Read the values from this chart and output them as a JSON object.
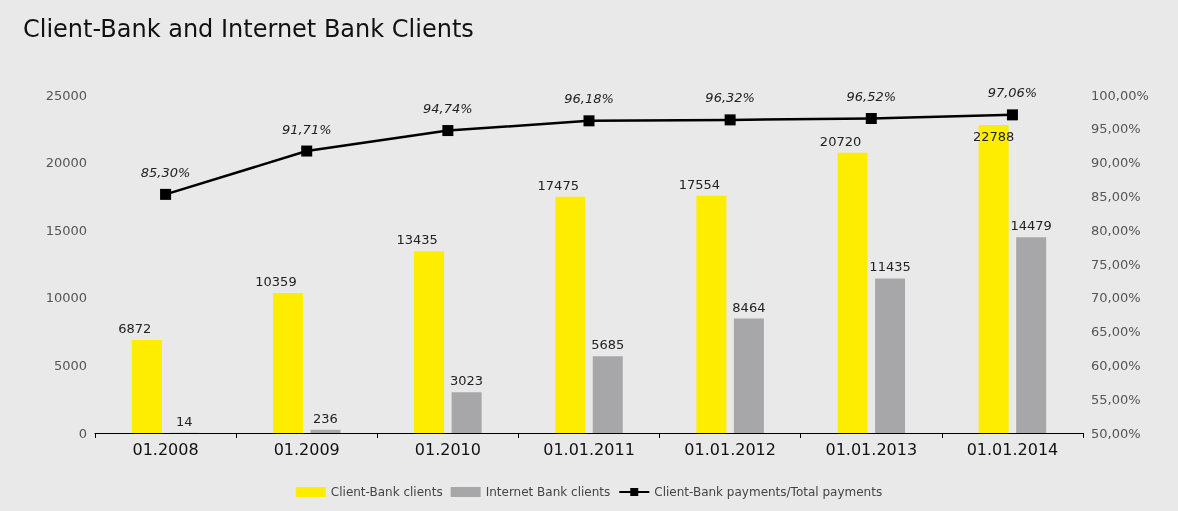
{
  "chart_data": {
    "type": "bar",
    "title": "Client-Bank and Internet Bank Clients",
    "categories": [
      "01.2008",
      "01.2009",
      "01.2010",
      "01.01.2011",
      "01.01.2012",
      "01.01.2013",
      "01.01.2014"
    ],
    "series": [
      {
        "name": "Client-Bank clients",
        "color": "#ffed00",
        "values": [
          6872,
          10359,
          13435,
          17475,
          17554,
          20720,
          22788
        ]
      },
      {
        "name": "Internet Bank clients",
        "color": "#a7a7a9",
        "values": [
          14,
          236,
          3023,
          5685,
          8464,
          11435,
          14479
        ]
      },
      {
        "name": "Client-Bank payments/Total payments",
        "type": "line",
        "axis": "y2",
        "color": "#000000",
        "marker": "square",
        "values": [
          85.3,
          91.71,
          94.74,
          96.18,
          96.32,
          96.52,
          97.06
        ],
        "value_labels": [
          "85,30%",
          "91,71%",
          "94,74%",
          "96,18%",
          "96,32%",
          "96,52%",
          "97,06%"
        ]
      }
    ],
    "data_labels": true,
    "ylim": [
      0,
      25000
    ],
    "yticks": [
      0,
      5000,
      10000,
      15000,
      20000,
      25000
    ],
    "y2lim": [
      50,
      100
    ],
    "y2ticks": [
      {
        "value": 50,
        "label": "50,00%"
      },
      {
        "value": 55,
        "label": "55,00%"
      },
      {
        "value": 60,
        "label": "60,00%"
      },
      {
        "value": 65,
        "label": "65,00%"
      },
      {
        "value": 70,
        "label": "70,00%"
      },
      {
        "value": 75,
        "label": "75,00%"
      },
      {
        "value": 80,
        "label": "80,00%"
      },
      {
        "value": 85,
        "label": "85,00%"
      },
      {
        "value": 90,
        "label": "90,00%"
      },
      {
        "value": 95,
        "label": "95,00%"
      },
      {
        "value": 100,
        "label": "100,00%"
      }
    ],
    "grid": false,
    "legend": "bottom"
  }
}
